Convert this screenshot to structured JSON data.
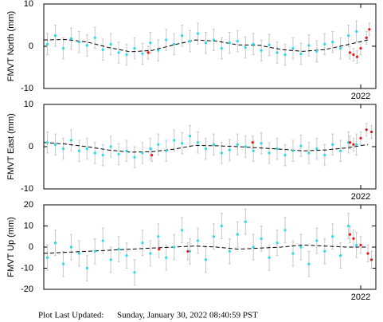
{
  "chart_data": [
    {
      "type": "scatter",
      "ylabel": "FMVT North (mm)",
      "xlim": [
        2017.6,
        2022.21
      ],
      "xticks": [
        2022
      ],
      "ylim": [
        -10,
        10
      ],
      "yticks": [
        -10,
        0,
        10
      ],
      "series": [
        {
          "color": "#22dded",
          "x": [
            2017.65,
            2017.76,
            2017.87,
            2017.98,
            2018.09,
            2018.2,
            2018.31,
            2018.42,
            2018.53,
            2018.64,
            2018.75,
            2018.86,
            2018.97,
            2019.08,
            2019.19,
            2019.3,
            2019.41,
            2019.52,
            2019.63,
            2019.74,
            2019.85,
            2019.96,
            2020.07,
            2020.18,
            2020.29,
            2020.4,
            2020.51,
            2020.62,
            2020.73,
            2020.84,
            2020.95,
            2021.06,
            2021.17,
            2021.28,
            2021.39,
            2021.5,
            2021.61,
            2021.72,
            2021.83,
            2021.94
          ],
          "values": [
            0.5,
            2.5,
            -0.5,
            1.8,
            1,
            0.2,
            2,
            -0.8,
            0.5,
            -1.5,
            -2,
            -0.5,
            -1.8,
            0.8,
            -1,
            1.5,
            0.5,
            2.5,
            1.2,
            3,
            0.8,
            1.5,
            -0.5,
            0.8,
            1.2,
            -0.3,
            0.5,
            -1,
            0.3,
            -1.5,
            -2,
            -0.5,
            -1.8,
            0.2,
            -1.2,
            0.5,
            1,
            -0.5,
            2.5,
            3.5
          ],
          "errors": [
            2.5,
            2.5,
            2.5,
            2.5,
            2.5,
            2.5,
            2.5,
            2.5,
            2.5,
            2.5,
            2.5,
            2.5,
            2.5,
            2.5,
            2.5,
            2.5,
            2.5,
            2.5,
            2.5,
            2.5,
            2.5,
            2.5,
            2.5,
            2.5,
            2.5,
            2.5,
            2.5,
            2.5,
            2.5,
            2.5,
            2.5,
            2.5,
            2.5,
            2.5,
            2.5,
            2.5,
            2.5,
            2.5,
            2.5,
            2.5
          ]
        },
        {
          "color": "#ee1111",
          "x": [
            2019.05,
            2021.85,
            2021.9,
            2021.95,
            2022.0,
            2022.08,
            2022.12
          ],
          "values": [
            -1.5,
            -1.5,
            -2,
            -2.5,
            -0.5,
            2,
            4
          ],
          "errors": [
            1.5,
            1.5,
            1.5,
            1.5,
            1.5,
            1.5,
            1.5
          ]
        },
        {
          "color": "#000000",
          "line_style": "dashed",
          "x": [
            2017.6,
            2017.9,
            2018.2,
            2018.5,
            2018.8,
            2019.1,
            2019.4,
            2019.7,
            2020.0,
            2020.3,
            2020.6,
            2020.9,
            2021.2,
            2021.5,
            2021.8,
            2022.1
          ],
          "values": [
            1.5,
            1.6,
            1,
            -0.3,
            -1.3,
            -1,
            0.3,
            1.5,
            1.2,
            0.3,
            0.2,
            -0.8,
            -1.2,
            -0.8,
            0.3,
            1.5
          ]
        }
      ]
    },
    {
      "type": "scatter",
      "ylabel": "FMVT East (mm)",
      "xlim": [
        2017.6,
        2022.21
      ],
      "xticks": [
        2022
      ],
      "ylim": [
        -10,
        10
      ],
      "yticks": [
        -10,
        0,
        10
      ],
      "series": [
        {
          "color": "#22dded",
          "x": [
            2017.65,
            2017.76,
            2017.87,
            2017.98,
            2018.09,
            2018.2,
            2018.31,
            2018.42,
            2018.53,
            2018.64,
            2018.75,
            2018.86,
            2018.97,
            2019.08,
            2019.19,
            2019.3,
            2019.41,
            2019.52,
            2019.63,
            2019.74,
            2019.85,
            2019.96,
            2020.07,
            2020.18,
            2020.29,
            2020.4,
            2020.51,
            2020.62,
            2020.73,
            2020.84,
            2020.95,
            2021.06,
            2021.17,
            2021.28,
            2021.39,
            2021.5,
            2021.61,
            2021.72,
            2021.83,
            2021.94
          ],
          "values": [
            1,
            0.5,
            -0.5,
            1.5,
            -1,
            -0.5,
            -1.5,
            -2,
            0,
            -1.8,
            -1,
            -2.5,
            -1.5,
            -0.5,
            0.5,
            -1,
            1.5,
            0.8,
            2.5,
            1,
            -0.5,
            0.5,
            -1.5,
            -0.8,
            0.5,
            0,
            -1,
            0.8,
            -1.5,
            -0.5,
            -2,
            -1,
            0.2,
            -1.5,
            -0.5,
            -2,
            0.5,
            -1,
            1,
            0.5
          ],
          "errors": [
            2.5,
            2.5,
            2.5,
            2.5,
            2.5,
            2.5,
            2.5,
            2.5,
            2.5,
            2.5,
            2.5,
            2.5,
            2.5,
            2.5,
            2.5,
            2.5,
            2.5,
            2.5,
            2.5,
            2.5,
            2.5,
            2.5,
            2.5,
            2.5,
            2.5,
            2.5,
            2.5,
            2.5,
            2.5,
            2.5,
            2.5,
            2.5,
            2.5,
            2.5,
            2.5,
            2.5,
            2.5,
            2.5,
            2.5,
            2.5
          ]
        },
        {
          "color": "#ee1111",
          "x": [
            2019.1,
            2020.5,
            2021.85,
            2021.9,
            2022.0,
            2022.08,
            2022.15
          ],
          "values": [
            -2,
            1,
            1,
            0.5,
            2,
            4,
            3.5
          ],
          "errors": [
            1.5,
            1.5,
            1.5,
            1.5,
            1.5,
            1.5,
            1.5
          ]
        },
        {
          "color": "#000000",
          "line_style": "dashed",
          "x": [
            2017.6,
            2017.9,
            2018.2,
            2018.5,
            2018.8,
            2019.1,
            2019.4,
            2019.7,
            2020.0,
            2020.3,
            2020.6,
            2020.9,
            2021.2,
            2021.5,
            2021.8,
            2022.1
          ],
          "values": [
            1,
            0.6,
            0,
            -0.8,
            -1.3,
            -1.2,
            -0.6,
            0.3,
            0.2,
            0,
            -0.3,
            -0.6,
            -1,
            -0.8,
            -0.3,
            0.5
          ]
        }
      ]
    },
    {
      "type": "scatter",
      "ylabel": "FMVT Up (mm)",
      "xlim": [
        2017.6,
        2022.21
      ],
      "xticks": [
        2022
      ],
      "ylim": [
        -20,
        20
      ],
      "yticks": [
        -20,
        -10,
        0,
        10,
        20
      ],
      "series": [
        {
          "color": "#22dded",
          "x": [
            2017.65,
            2017.76,
            2017.87,
            2017.98,
            2018.09,
            2018.2,
            2018.31,
            2018.42,
            2018.53,
            2018.64,
            2018.75,
            2018.86,
            2018.97,
            2019.08,
            2019.19,
            2019.3,
            2019.41,
            2019.52,
            2019.63,
            2019.74,
            2019.85,
            2019.96,
            2020.07,
            2020.18,
            2020.29,
            2020.4,
            2020.51,
            2020.62,
            2020.73,
            2020.84,
            2020.95,
            2021.06,
            2021.17,
            2021.28,
            2021.39,
            2021.5,
            2021.61,
            2021.72,
            2021.83,
            2021.94
          ],
          "values": [
            -5,
            2,
            -8,
            0,
            -3,
            -10,
            -2,
            3,
            -6,
            -1,
            -4,
            -12,
            2,
            -3,
            5,
            -5,
            0,
            8,
            -2,
            3,
            -6,
            5,
            10,
            -2,
            6,
            12,
            0,
            4,
            -5,
            2,
            8,
            -3,
            0,
            -8,
            3,
            -2,
            5,
            -4,
            10,
            1
          ],
          "errors": [
            6,
            6,
            6,
            6,
            6,
            6,
            6,
            6,
            6,
            6,
            6,
            6,
            6,
            6,
            6,
            6,
            6,
            6,
            6,
            6,
            6,
            6,
            6,
            6,
            6,
            6,
            6,
            6,
            6,
            6,
            6,
            6,
            6,
            6,
            6,
            6,
            6,
            6,
            6,
            6
          ]
        },
        {
          "color": "#ee1111",
          "x": [
            2019.2,
            2019.6,
            2021.85,
            2021.9,
            2022.0,
            2022.1,
            2022.15
          ],
          "values": [
            -1,
            -2,
            6,
            4,
            1,
            -3,
            -6
          ],
          "errors": [
            4,
            4,
            4,
            4,
            4,
            4,
            4
          ]
        },
        {
          "color": "#000000",
          "line_style": "dashed",
          "x": [
            2017.6,
            2017.9,
            2018.2,
            2018.5,
            2018.8,
            2019.1,
            2019.4,
            2019.7,
            2020.0,
            2020.3,
            2020.6,
            2020.9,
            2021.2,
            2021.5,
            2021.8,
            2022.1
          ],
          "values": [
            -3,
            -2.5,
            -2,
            -1.5,
            -1,
            -0.5,
            0,
            0.5,
            0,
            -1,
            -0.5,
            0,
            1,
            0.5,
            0,
            0
          ]
        }
      ]
    }
  ],
  "footer": {
    "label": "Plot Last Updated:",
    "value": "Sunday, January 30, 2022 08:40:59 PST"
  }
}
